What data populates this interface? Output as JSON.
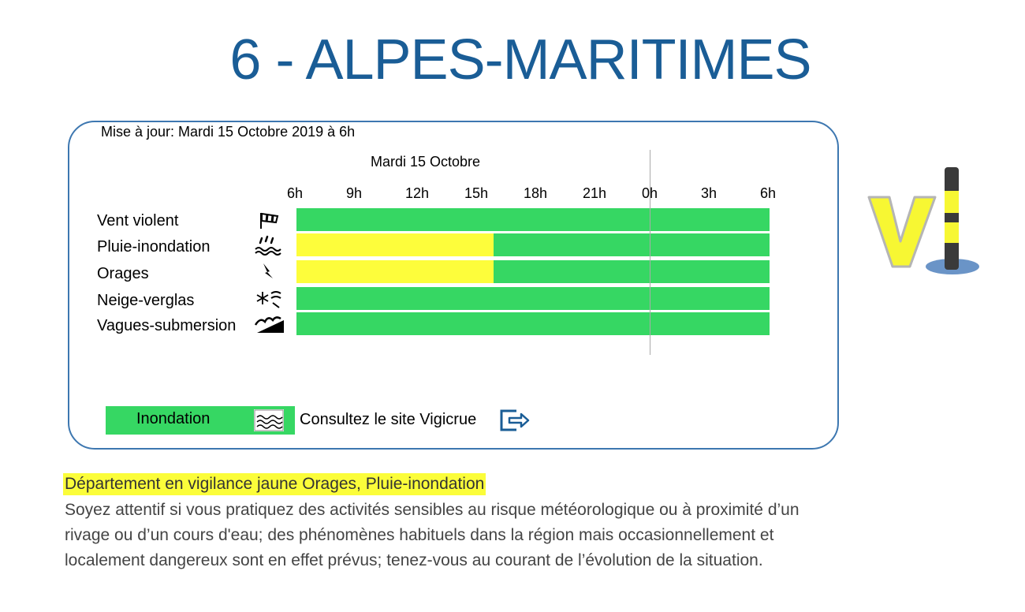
{
  "title": "6 - ALPES-MARITIMES",
  "update": "Mise à jour: Mardi 15 Octobre 2019 à 6h",
  "day_label": "Mardi 15 Octobre",
  "hours": [
    "6h",
    "9h",
    "12h",
    "15h",
    "18h",
    "21h",
    "0h",
    "3h",
    "6h"
  ],
  "colors": {
    "green": "#36d763",
    "yellow": "#fdfd3b",
    "accent": "#1a5d96"
  },
  "rows": [
    {
      "label": "Vent violent",
      "icon": "windsock-icon",
      "segments": [
        {
          "level": "green",
          "from_h": 0,
          "to_h": 24
        }
      ]
    },
    {
      "label": "Pluie-inondation",
      "icon": "rain-flood-icon",
      "segments": [
        {
          "level": "yellow",
          "from_h": 0,
          "to_h": 10
        },
        {
          "level": "green",
          "from_h": 10,
          "to_h": 24
        }
      ]
    },
    {
      "label": "Orages",
      "icon": "lightning-icon",
      "segments": [
        {
          "level": "yellow",
          "from_h": 0,
          "to_h": 10
        },
        {
          "level": "green",
          "from_h": 10,
          "to_h": 24
        }
      ]
    },
    {
      "label": "Neige-verglas",
      "icon": "snow-ice-icon",
      "segments": [
        {
          "level": "green",
          "from_h": 0,
          "to_h": 24
        }
      ]
    },
    {
      "label": "Vagues-submersion",
      "icon": "wave-submersion-icon",
      "segments": [
        {
          "level": "green",
          "from_h": 0,
          "to_h": 24
        }
      ]
    }
  ],
  "flood": {
    "label": "Inondation",
    "icon": "flood-waves-icon",
    "link_text": "Consultez le site Vigicrue",
    "link_icon": "exit-arrow-icon"
  },
  "headline": "Département en vigilance jaune Orages, Pluie-inondation",
  "description": "Soyez attentif si vous pratiquez des activités sensibles au risque météorologique ou à proximité d’un rivage ou d’un cours d'eau; des phénomènes habituels dans la région mais occasionnellement et localement dangereux sont en effet prévus; tenez-vous au courant de l’évolution de la situation."
}
